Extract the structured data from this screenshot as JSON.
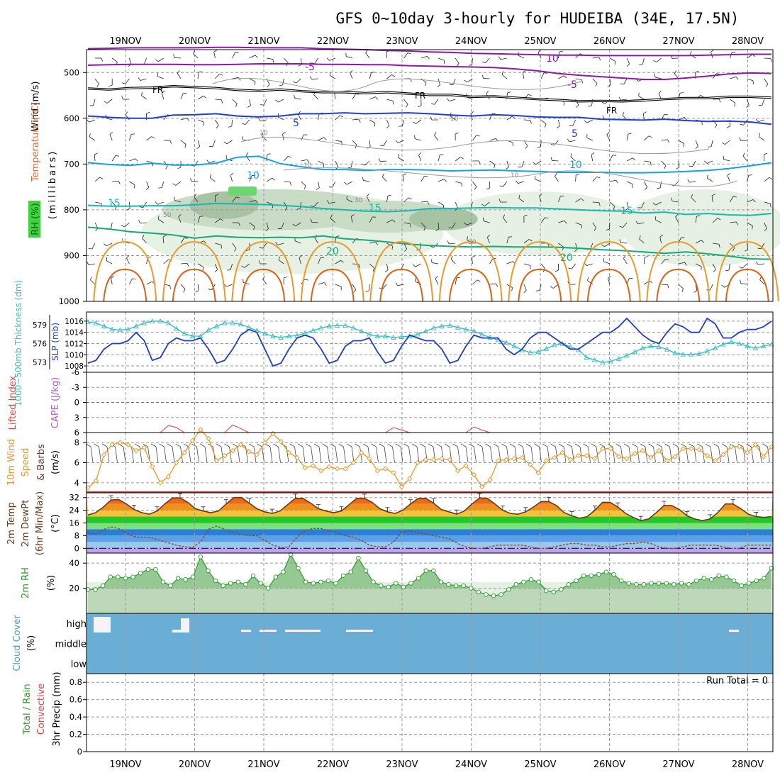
{
  "title": "GFS 0~10day 3-hourly for HUDEIBA (34E, 17.5N)",
  "dates": [
    "19NOV",
    "20NOV",
    "21NOV",
    "22NOV",
    "23NOV",
    "24NOV",
    "25NOV",
    "26NOV",
    "27NOV",
    "28NOV"
  ],
  "colors": {
    "purple": "#8a1aa8",
    "black": "#000000",
    "blue": "#1f3fd0",
    "cyan_blue": "#1aa0e0",
    "teal": "#18b8b0",
    "green": "#17a87a",
    "orange": "#e89a2a",
    "dark_orange": "#d8641a",
    "slp": "#1f3fbf",
    "thickness": "#3cbcc4",
    "cape": "#b45cc8",
    "lifted_index": "#e04040",
    "wind": "#e8962a",
    "rh": "#2e9a2e",
    "cloud": "#6aaed6",
    "temp_dark": "#6b3a1a"
  },
  "chart_data": [
    {
      "type": "contour",
      "panel": "upper_air",
      "ylabel": "Wind (m/s)",
      "ylabel_temp": "Temperature (°C)",
      "ylabel_rh": "RH (%)",
      "ylabel_units": "(millibars)",
      "y_ticks": [
        "500",
        "600",
        "700",
        "800",
        "900",
        "1000"
      ],
      "ylim": [
        450,
        1000
      ],
      "labels": {
        "m5": "-5",
        "fr": "FR",
        "p5": "5",
        "p10": "10",
        "p15": "15",
        "p20": "20",
        "rh30": "30",
        "rh50": "50",
        "t10": "10"
      },
      "isotherms": [
        {
          "name": "-10",
          "values": [
            448,
            447,
            446,
            446,
            446,
            446,
            445,
            445,
            446,
            446,
            446,
            448,
            449,
            450,
            452,
            453,
            455,
            456,
            458,
            459,
            460,
            461,
            462,
            462,
            463,
            463,
            463,
            463,
            463,
            462,
            461,
            460,
            460
          ]
        },
        {
          "name": "-5",
          "values": [
            484,
            483,
            482,
            482,
            482,
            483,
            483,
            482,
            481,
            481,
            481,
            482,
            482,
            483,
            483,
            485,
            486,
            487,
            488,
            489,
            492,
            496,
            502,
            506,
            509,
            512,
            515,
            515,
            512,
            508,
            503,
            501,
            502
          ]
        },
        {
          "name": "FR",
          "values": [
            535,
            537,
            534,
            533,
            530,
            532,
            534,
            538,
            540,
            537,
            541,
            543,
            543,
            545,
            543,
            546,
            549,
            549,
            553,
            552,
            555,
            558,
            560,
            563,
            562,
            563,
            561,
            558,
            556,
            556,
            553,
            553,
            555
          ]
        },
        {
          "name": "5",
          "values": [
            595,
            598,
            600,
            600,
            593,
            592,
            590,
            595,
            597,
            595,
            590,
            590,
            588,
            590,
            589,
            588,
            590,
            593,
            595,
            592,
            594,
            597,
            598,
            598,
            602,
            603,
            604,
            602,
            605,
            607,
            606,
            608,
            613
          ]
        },
        {
          "name": "10",
          "values": [
            697,
            701,
            703,
            698,
            702,
            702,
            698,
            685,
            683,
            699,
            706,
            712,
            712,
            714,
            712,
            712,
            713,
            715,
            714,
            713,
            715,
            716,
            718,
            718,
            718,
            719,
            719,
            718,
            716,
            714,
            710,
            704,
            697
          ]
        },
        {
          "name": "15",
          "values": [
            790,
            792,
            792,
            791,
            791,
            789,
            786,
            787,
            788,
            790,
            793,
            797,
            800,
            803,
            804,
            802,
            797,
            797,
            796,
            795,
            796,
            796,
            798,
            800,
            802,
            803,
            807,
            805,
            810,
            808,
            811,
            812,
            808
          ]
        },
        {
          "name": "20",
          "values": [
            838,
            842,
            848,
            851,
            855,
            862,
            857,
            860,
            861,
            860,
            861,
            857,
            863,
            866,
            870,
            875,
            878,
            880,
            881,
            880,
            881,
            881,
            882,
            884,
            887,
            889,
            892,
            895,
            892,
            896,
            901,
            907,
            908
          ]
        }
      ],
      "rh_shading": [
        {
          "level": "30",
          "x_start": "19NOV12",
          "x_end": "25NOV00"
        },
        {
          "level": "30",
          "x_start": "26NOV00",
          "x_end": "28NOV06"
        },
        {
          "level": "50",
          "x_start": "19NOV12",
          "x_end": "22NOV06"
        }
      ]
    },
    {
      "type": "line",
      "panel": "pressure",
      "ylabel_left": "1000~500mb Thickness (dm)",
      "ylabel_right": "SLP (mb)",
      "left_ticks": [
        "579",
        "576",
        "573"
      ],
      "right_ticks": [
        "1016",
        "1014",
        "1012",
        "1010",
        "1008"
      ],
      "series": [
        {
          "name": "SLP (mb)",
          "values": [
            1008.5,
            1009,
            1011,
            1012,
            1012,
            1012.5,
            1014,
            1012.5,
            1009,
            1009.5,
            1012,
            1013,
            1012.5,
            1012.5,
            1013,
            1011,
            1008.5,
            1009,
            1011,
            1013.5,
            1014.5,
            1014,
            1011,
            1008,
            1008.5,
            1011,
            1013,
            1013.5,
            1013,
            1011,
            1008.5,
            1009,
            1011.5,
            1012.5,
            1012.5,
            1013,
            1010.5,
            1008.5,
            1009,
            1011.5,
            1013.5,
            1013,
            1012.5,
            1012.5,
            1011,
            1008.5,
            1009,
            1011.5,
            1013.5,
            1013,
            1013,
            1013,
            1011,
            1010,
            1011,
            1013,
            1014,
            1014,
            1013,
            1012,
            1011,
            1011,
            1012,
            1013,
            1014,
            1014,
            1015,
            1016.5,
            1015,
            1013.5,
            1012.5,
            1012,
            1014,
            1015.5,
            1015,
            1014,
            1014,
            1016.5,
            1015.5,
            1013,
            1013,
            1014,
            1014.5,
            1014.5,
            1015,
            1016
          ]
        },
        {
          "name": "1000~500mb Thickness (dm)",
          "values": [
            579.5,
            579.3,
            578.8,
            578.3,
            578.2,
            578.3,
            578.8,
            579.3,
            579.6,
            579.6,
            579.3,
            578.4,
            577.6,
            577.2,
            577.2,
            578.2,
            578.8,
            579.3,
            579.3,
            579.1,
            578.6,
            578.1,
            577.6,
            577.2,
            577.0,
            577.2,
            577.3,
            577.7,
            578.1,
            578.5,
            578.8,
            578.9,
            578.9,
            578.5,
            578.0,
            577.5,
            577.2,
            577.2,
            577.0,
            577.1,
            577.2,
            577.5,
            578.0,
            578.5,
            578.8,
            578.9,
            578.6,
            578.3,
            578.0,
            577.5,
            577.0,
            576.6,
            576.2,
            575.6,
            575.0,
            574.6,
            574.7,
            575.2,
            575.8,
            576.0,
            575.5,
            575.0,
            573.8,
            573.4,
            573.0,
            573.2,
            573.6,
            574.1,
            574.7,
            575.3,
            575.6,
            575.5,
            575.1,
            574.5,
            574.3,
            574.3,
            574.4,
            574.8,
            575.3,
            575.9,
            576.3,
            576.0,
            575.6,
            575.3,
            575.6,
            575.9
          ]
        }
      ]
    },
    {
      "type": "line",
      "panel": "instability",
      "ylabel_left": "Lifted Index",
      "ylabel_right": "CAPE (J/kg)",
      "ylim": [
        -6,
        6
      ],
      "y_ticks": [
        "-6",
        "-3",
        "0",
        "3",
        "6"
      ],
      "series": [
        {
          "name": "Lifted Index",
          "values": [
            6,
            6,
            6,
            6,
            6,
            6,
            6,
            6,
            6,
            6,
            4.6,
            5,
            6,
            6,
            6,
            6,
            6,
            6,
            4.5,
            5.2,
            6,
            6,
            6,
            6,
            6,
            6,
            6,
            6,
            6,
            6,
            6,
            6,
            6,
            6,
            6,
            6,
            6,
            6,
            5,
            5.5,
            6,
            6,
            6,
            6,
            6,
            6,
            6,
            6,
            4.9,
            5.5,
            6,
            6,
            6,
            6,
            6,
            6,
            6,
            6,
            6,
            6,
            6,
            6,
            6,
            6,
            6,
            6,
            6,
            6,
            6,
            6,
            6,
            6,
            6,
            6,
            6,
            6,
            6,
            6,
            6,
            6,
            6,
            6,
            6,
            6,
            6,
            6
          ]
        }
      ]
    },
    {
      "type": "line",
      "panel": "wind",
      "ylabel_1": "10m Wind",
      "ylabel_2": "Speed",
      "ylabel_3": "& Barbs",
      "ylabel_units": "(m/s)",
      "y_ticks": [
        "8",
        "6",
        "4"
      ],
      "ylim": [
        3,
        9
      ],
      "series": [
        {
          "name": "10m Wind Speed",
          "values": [
            3.5,
            4.2,
            6.8,
            7.8,
            8,
            7.8,
            7.2,
            7.5,
            5.6,
            4,
            4.6,
            6,
            7,
            8.2,
            9.3,
            8.4,
            6.2,
            6.7,
            7.2,
            7.8,
            7.1,
            6.8,
            8,
            8.9,
            8.1,
            7,
            6.5,
            5.5,
            5.7,
            5.2,
            5.6,
            5.4,
            5.4,
            6,
            7,
            6.4,
            5.2,
            5.4,
            5,
            3.6,
            4.4,
            6,
            6.3,
            6.3,
            6.4,
            6.3,
            5.2,
            5.7,
            4.8,
            3.6,
            4.3,
            6.2,
            6.3,
            6.4,
            6.5,
            5.8,
            5,
            6.2,
            6.5,
            7,
            6.3,
            6.7,
            6.7,
            6.4,
            7.4,
            7.4,
            6.6,
            6.4,
            6.9,
            7.2,
            6.5,
            7.2,
            6.2,
            6.6,
            7.4,
            7.4,
            7.3,
            6.7,
            6.2,
            6.8,
            7.6,
            7.6,
            7,
            7.8,
            6.6,
            7.6
          ]
        }
      ]
    },
    {
      "type": "area",
      "panel": "temperature",
      "ylabel_1": "2m Temp",
      "ylabel_2": "2m DewPt",
      "ylabel_3": "(6hr Min/Max)",
      "ylabel_units": "(°C)",
      "y_ticks": [
        "32",
        "24",
        "16",
        "8",
        "0"
      ],
      "ylim": [
        -3,
        35
      ],
      "series": [
        {
          "name": "2m Temp",
          "values": [
            21,
            22.5,
            26,
            30.5,
            30.8,
            28,
            24.5,
            22.5,
            21.5,
            23.5,
            28,
            31.8,
            31.8,
            29,
            25,
            23.5,
            22.5,
            23.5,
            28,
            32,
            32,
            28.5,
            25,
            23,
            22,
            23.5,
            27.5,
            31.5,
            31.5,
            28.5,
            25,
            23.5,
            22.5,
            23.5,
            27.5,
            31.5,
            31.5,
            29,
            25,
            23,
            22,
            24,
            28,
            31.5,
            31.5,
            28.5,
            24.5,
            23,
            21.5,
            23.5,
            28,
            31.8,
            31.5,
            28,
            24,
            22,
            21.5,
            23,
            26,
            29.5,
            29.5,
            27,
            22.5,
            20.5,
            19,
            20,
            24,
            29,
            29,
            26,
            22,
            19.5,
            17.5,
            18.5,
            22.5,
            27,
            27,
            24.5,
            20.5,
            18.5,
            17.5,
            18.5,
            22.5,
            28,
            28,
            25,
            21.5,
            20,
            19.5,
            20
          ]
        },
        {
          "name": "2m DewPt",
          "values": [
            10,
            9,
            12,
            13.5,
            12,
            9,
            7,
            7,
            6.5,
            5,
            3.5,
            2,
            1,
            0.5,
            4,
            12,
            14,
            12,
            10,
            9,
            8,
            8,
            5,
            2,
            0.5,
            1,
            7,
            11,
            12.5,
            12.5,
            11,
            10,
            8,
            7,
            5,
            2,
            1,
            1,
            4,
            10,
            11,
            10,
            9,
            8,
            7,
            6,
            3,
            1,
            0,
            0,
            1,
            2,
            2,
            2,
            2,
            1,
            0,
            0,
            1,
            2,
            3,
            3,
            2,
            2,
            1,
            1,
            2,
            3,
            3,
            4,
            3,
            1,
            0,
            0,
            1,
            2,
            2,
            2,
            2,
            1,
            0,
            0,
            2,
            2,
            2,
            2
          ]
        }
      ]
    },
    {
      "type": "area",
      "panel": "rh",
      "ylabel": "2m RH",
      "ylabel_units": "(%)",
      "y_ticks": [
        "40",
        "20"
      ],
      "ylim": [
        0,
        48
      ],
      "series": [
        {
          "name": "2m RH",
          "values": [
            19,
            19,
            22,
            29,
            29,
            28,
            29,
            32,
            35,
            35,
            25,
            22,
            28,
            27,
            29,
            45,
            34,
            26,
            22,
            24,
            25,
            23,
            30,
            24,
            20,
            29,
            33,
            47,
            36,
            25,
            24,
            25,
            26,
            24,
            30,
            33,
            44,
            34,
            25,
            22,
            21,
            24,
            21,
            24,
            28,
            34,
            34,
            25,
            23,
            22,
            22,
            20,
            17,
            15,
            14,
            15,
            19,
            23,
            25,
            27,
            25,
            18,
            17,
            19,
            23,
            26,
            30,
            30,
            31,
            33,
            31,
            26,
            24,
            23,
            23,
            24,
            24,
            24,
            23,
            24,
            23,
            26,
            28,
            27,
            30,
            29,
            26,
            22,
            24,
            26,
            28,
            36
          ]
        }
      ]
    },
    {
      "type": "heatmap",
      "panel": "cloud",
      "ylabel": "Cloud Cover",
      "ylabel_units": "(%)",
      "row_labels": [
        "high",
        "middle",
        "low"
      ],
      "cells": [
        {
          "row": "high",
          "value_pct": 100,
          "x_start": "18NOV12",
          "x_end": "28NOV06"
        },
        {
          "row": "middle",
          "value_pct": 100,
          "x_start": "18NOV12",
          "x_end": "28NOV06"
        },
        {
          "row": "low",
          "value_pct": 100,
          "x_start": "18NOV12",
          "x_end": "28NOV06"
        }
      ]
    },
    {
      "type": "bar",
      "panel": "precip",
      "ylabel_1": "Total / Rain",
      "ylabel_2": "Convective",
      "ylabel_units": "3hr Precip (mm)",
      "y_ticks": [
        "0.8",
        "0.6",
        "0.4",
        "0.2",
        "0"
      ],
      "ylim": [
        0,
        0.9
      ],
      "run_total_label": "Run Total = 0",
      "series": [
        {
          "name": "3hr Precip",
          "values": []
        }
      ]
    }
  ]
}
